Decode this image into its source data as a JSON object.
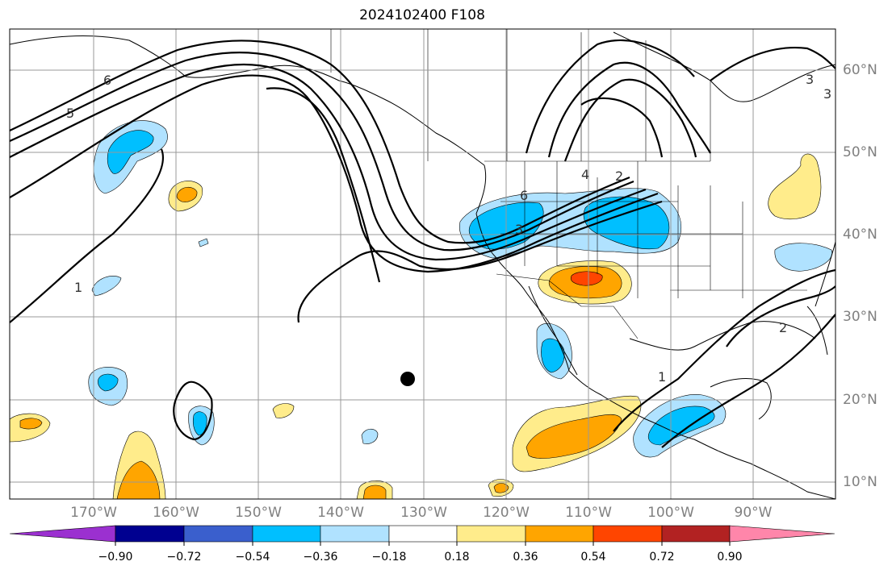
{
  "title": "2024102400 F108",
  "map": {
    "lon_range": [
      -179,
      -78
    ],
    "lat_range": [
      8,
      65
    ],
    "lon_labels": [
      "170°W",
      "160°W",
      "150°W",
      "140°W",
      "130°W",
      "120°W",
      "110°W",
      "100°W",
      "90°W"
    ],
    "lat_labels": [
      "60°N",
      "50°N",
      "40°N",
      "30°N",
      "20°N",
      "10°N"
    ],
    "grid": true,
    "gridline_color": "#999999",
    "contour_color": "#000000",
    "contour_labels": [
      "6",
      "5",
      "1",
      "6",
      "3",
      "4",
      "2",
      "3",
      "2",
      "1",
      "3"
    ],
    "marker": "black dot near 132°W, 22.5°N"
  },
  "colorbar": {
    "tick_labels": [
      "−0.90",
      "−0.72",
      "−0.54",
      "−0.36",
      "−0.18",
      "0.18",
      "0.36",
      "0.54",
      "0.72",
      "0.90"
    ],
    "colors": [
      "#9b30d0",
      "#000090",
      "#3a5fcd",
      "#00bfff",
      "#b0e2ff",
      "#ffffff",
      "#ffec8b",
      "#ffa500",
      "#ff4500",
      "#b22222",
      "#ff86aa"
    ]
  },
  "shading_colors": {
    "light_blue": "#b0e2ff",
    "blue": "#00bfff",
    "light_yellow": "#ffec8b",
    "orange": "#ffa500",
    "red_orange": "#ff4500"
  }
}
